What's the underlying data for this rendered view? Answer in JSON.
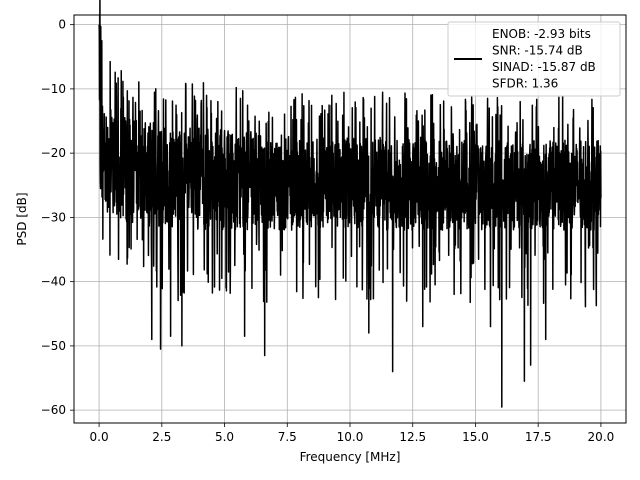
{
  "chart_data": {
    "type": "line",
    "xlabel": "Frequency [MHz]",
    "ylabel": "PSD [dB]",
    "xlim": [
      -1.0,
      21.0
    ],
    "ylim": [
      -62.0,
      1.5
    ],
    "xticks": [
      0.0,
      2.5,
      5.0,
      7.5,
      10.0,
      12.5,
      15.0,
      17.5,
      20.0
    ],
    "xtick_labels": [
      "0.0",
      "2.5",
      "5.0",
      "7.5",
      "10.0",
      "12.5",
      "15.0",
      "17.5",
      "20.0"
    ],
    "yticks": [
      0,
      -10,
      -20,
      -30,
      -40,
      -50,
      -60
    ],
    "ytick_labels": [
      "0",
      "−10",
      "−20",
      "−30",
      "−40",
      "−50",
      "−60"
    ],
    "grid": true,
    "legend_position": "top-right",
    "legend_lines": [
      "ENOB: -2.93 bits",
      "SNR: -15.74 dB",
      "SINAD: -15.87 dB",
      "SFDR: 1.36"
    ],
    "series": [
      {
        "color": "#000000",
        "x": [
          0.0,
          0.05,
          0.1,
          0.15,
          0.2,
          0.3,
          0.5,
          0.8,
          1.2,
          1.6,
          2.0,
          2.5,
          3.0,
          3.5,
          4.0,
          4.5,
          5.0,
          5.5,
          6.0,
          6.5,
          7.0,
          7.5,
          8.0,
          8.5,
          9.0,
          9.5,
          10.0,
          10.5,
          11.0,
          11.5,
          12.0,
          12.5,
          13.0,
          13.5,
          14.0,
          14.5,
          15.0,
          15.5,
          16.0,
          16.5,
          17.0,
          17.5,
          18.0,
          18.5,
          19.0,
          19.5,
          20.0
        ],
        "upper": [
          0.0,
          -4.0,
          -8.0,
          -10.0,
          -11.0,
          -12.0,
          -13.0,
          -14.0,
          -14.5,
          -15.0,
          -15.0,
          -15.5,
          -15.5,
          -16.0,
          -16.0,
          -16.0,
          -16.5,
          -16.5,
          -16.5,
          -17.0,
          -17.0,
          -17.0,
          -17.0,
          -17.0,
          -17.5,
          -17.5,
          -17.5,
          -17.5,
          -17.5,
          -17.5,
          -17.5,
          -17.5,
          -17.5,
          -17.5,
          -18.0,
          -18.0,
          -18.0,
          -18.0,
          -18.0,
          -18.0,
          -18.0,
          -18.0,
          -18.0,
          -18.0,
          -18.0,
          -18.0,
          -18.0
        ],
        "lower": [
          -22.0,
          -26.0,
          -27.0,
          -28.0,
          -28.5,
          -29.0,
          -30.0,
          -30.5,
          -31.0,
          -31.0,
          -31.5,
          -31.5,
          -31.5,
          -32.0,
          -32.0,
          -32.0,
          -32.0,
          -32.0,
          -32.0,
          -32.0,
          -32.0,
          -32.0,
          -32.0,
          -32.0,
          -32.0,
          -32.0,
          -32.0,
          -32.0,
          -32.0,
          -32.0,
          -32.0,
          -32.0,
          -32.0,
          -32.0,
          -32.0,
          -32.0,
          -32.0,
          -32.0,
          -32.0,
          -32.0,
          -32.0,
          -32.0,
          -32.0,
          -32.0,
          -32.0,
          -32.0,
          -32.0
        ]
      }
    ],
    "notable_points": [
      {
        "x": 0.0,
        "y": 0.0
      },
      {
        "x": 2.1,
        "y": -49.0
      },
      {
        "x": 2.45,
        "y": -50.5
      },
      {
        "x": 2.85,
        "y": -48.5
      },
      {
        "x": 3.3,
        "y": -50.0
      },
      {
        "x": 5.8,
        "y": -48.5
      },
      {
        "x": 6.6,
        "y": -51.5
      },
      {
        "x": 10.75,
        "y": -48.0
      },
      {
        "x": 11.7,
        "y": -54.0
      },
      {
        "x": 12.9,
        "y": -47.0
      },
      {
        "x": 15.6,
        "y": -47.0
      },
      {
        "x": 16.05,
        "y": -59.5
      },
      {
        "x": 16.95,
        "y": -55.5
      },
      {
        "x": 17.2,
        "y": -53.0
      },
      {
        "x": 17.8,
        "y": -49.0
      }
    ]
  }
}
